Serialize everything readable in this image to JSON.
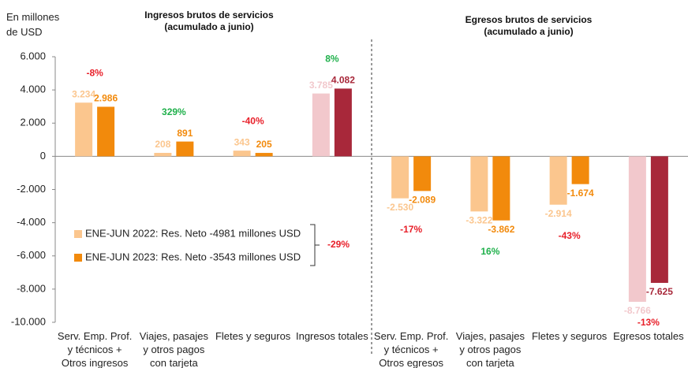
{
  "chart_data": {
    "type": "bar",
    "titles": [
      "Ingresos brutos de servicios\n(acumulado a junio)",
      "Egresos brutos de servicios\n(acumulado a junio)"
    ],
    "y_label": "En millones\nde USD",
    "categories": [
      "Serv. Emp. Prof.\ny técnicos +\nOtros ingresos",
      "Viajes, pasajes\ny otros pagos\ncon tarjeta",
      "Fletes y seguros",
      "Ingresos totales",
      "Serv. Emp. Prof.\ny técnicos +\nOtros egresos",
      "Viajes, pasajes\ny otros pagos\ncon tarjeta",
      "Fletes y seguros",
      "Egresos totales"
    ],
    "series": [
      {
        "name": "ENE-JUN 2022: Res. Neto -4981 millones USD",
        "color": "#fbc68e",
        "point_colors": [
          "#fbc68e",
          "#fbc68e",
          "#fbc68e",
          "#f2c8cc",
          "#fbc68e",
          "#fbc68e",
          "#fbc68e",
          "#f2c8cc"
        ],
        "values": [
          3234,
          208,
          343,
          3785,
          -2530,
          -3322,
          -2914,
          -8766
        ],
        "value_labels": [
          "3.234",
          "208",
          "343",
          "3.785",
          "-2.530",
          "-3.322",
          "-2.914",
          "-8.766"
        ]
      },
      {
        "name": "ENE-JUN 2023: Res. Neto -3543 millones USD",
        "color": "#f28a0c",
        "point_colors": [
          "#f28a0c",
          "#f28a0c",
          "#f28a0c",
          "#a8283a",
          "#f28a0c",
          "#f28a0c",
          "#f28a0c",
          "#a8283a"
        ],
        "values": [
          2986,
          891,
          205,
          4082,
          -2089,
          -3862,
          -1674,
          -7625
        ],
        "value_labels": [
          "2.986",
          "891",
          "205",
          "4.082",
          "-2.089",
          "-3.862",
          "-1.674",
          "-7.625"
        ]
      }
    ],
    "change_labels": [
      "-8%",
      "329%",
      "-40%",
      "8%",
      "-17%",
      "16%",
      "-43%",
      "-13%"
    ],
    "change_colors": [
      "#e8202a",
      "#1fb04b",
      "#e8202a",
      "#1fb04b",
      "#e8202a",
      "#1fb04b",
      "#e8202a",
      "#e8202a"
    ],
    "legend_note": "-29%",
    "legend_note_color": "#e8202a",
    "ylim": [
      -10000,
      6000
    ],
    "yticks": [
      {
        "value": 6000,
        "label": "6.000"
      },
      {
        "value": 4000,
        "label": "4.000"
      },
      {
        "value": 2000,
        "label": "2.000"
      },
      0,
      {
        "value": -2000,
        "label": "-2.000"
      },
      {
        "value": -4000,
        "label": "-4.000"
      },
      {
        "value": -6000,
        "label": "-6.000"
      },
      {
        "value": -8000,
        "label": "-8.000"
      },
      {
        "value": -10000,
        "label": "-10.000"
      }
    ]
  }
}
